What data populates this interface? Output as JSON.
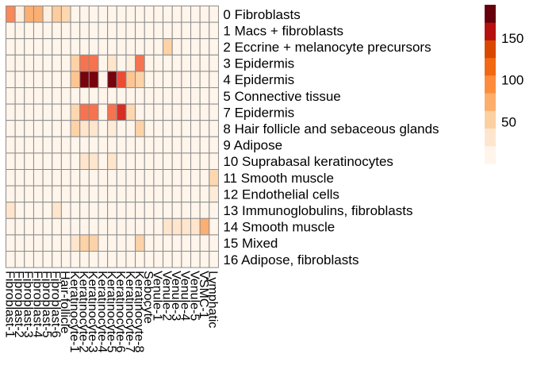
{
  "chart_data": {
    "type": "heatmap",
    "title": "",
    "xlabel": "",
    "ylabel": "",
    "rows": [
      "0 Fibroblasts",
      "1 Macs + fibroblasts",
      "2 Eccrine + melanocyte precursors",
      "3 Epidermis",
      "4 Epidermis",
      "5 Connective tissue",
      "7 Epidermis",
      "8 Hair follicle and sebaceous glands",
      "9 Adipose",
      "10 Suprabasal keratinocytes",
      "11 Smooth muscle",
      "12 Endothelial cells",
      "13 Immunoglobulins, fibroblasts",
      "14 Smooth muscle",
      "15 Mixed",
      "16 Adipose, fibroblasts"
    ],
    "columns": [
      "Fibroblast-1",
      "Fibroblast-2",
      "Fibroblast-3",
      "Fibroblast-4",
      "Fibroblast-5",
      "Fibroblast-6",
      "Hair-follicle",
      "Keratinocyte-1",
      "Keratinocyte-2",
      "Keratinocyte-3",
      "Keratinocyte-4",
      "Keratinocyte-5",
      "Keratinocyte-6",
      "Keratinocyte-7",
      "Keratinocyte-8",
      "Sebocyte",
      "Venule-1",
      "Venule-2",
      "Venule-3",
      "Venule-4",
      "Venule-5",
      "VSMC-1",
      "Lymphatic"
    ],
    "values": [
      [
        90,
        10,
        70,
        70,
        10,
        50,
        40,
        0,
        0,
        0,
        0,
        0,
        0,
        0,
        0,
        0,
        0,
        0,
        0,
        0,
        0,
        0,
        0
      ],
      [
        0,
        0,
        0,
        0,
        0,
        0,
        0,
        0,
        0,
        0,
        0,
        0,
        0,
        0,
        0,
        0,
        0,
        0,
        0,
        0,
        0,
        0,
        0
      ],
      [
        0,
        0,
        0,
        0,
        0,
        0,
        0,
        0,
        0,
        0,
        0,
        0,
        0,
        0,
        0,
        0,
        0,
        45,
        0,
        0,
        0,
        0,
        0
      ],
      [
        0,
        0,
        0,
        0,
        0,
        0,
        0,
        45,
        100,
        100,
        0,
        25,
        0,
        10,
        100,
        0,
        0,
        0,
        0,
        0,
        0,
        0,
        0
      ],
      [
        0,
        0,
        0,
        0,
        0,
        0,
        0,
        55,
        185,
        185,
        0,
        185,
        120,
        55,
        45,
        0,
        0,
        0,
        0,
        0,
        0,
        0,
        0
      ],
      [
        0,
        0,
        0,
        0,
        0,
        0,
        0,
        0,
        0,
        0,
        0,
        0,
        0,
        0,
        0,
        0,
        0,
        0,
        0,
        0,
        0,
        0,
        0
      ],
      [
        0,
        0,
        0,
        0,
        0,
        0,
        0,
        40,
        100,
        100,
        0,
        100,
        140,
        40,
        0,
        0,
        0,
        0,
        0,
        0,
        0,
        0,
        0
      ],
      [
        0,
        0,
        0,
        0,
        0,
        0,
        0,
        45,
        25,
        25,
        0,
        15,
        0,
        0,
        45,
        0,
        0,
        0,
        0,
        0,
        0,
        0,
        0
      ],
      [
        0,
        0,
        0,
        0,
        0,
        0,
        0,
        0,
        0,
        0,
        0,
        0,
        0,
        0,
        0,
        0,
        0,
        0,
        0,
        0,
        0,
        0,
        0
      ],
      [
        0,
        0,
        0,
        0,
        0,
        0,
        0,
        0,
        25,
        25,
        0,
        25,
        0,
        0,
        0,
        0,
        0,
        0,
        0,
        0,
        0,
        0,
        0
      ],
      [
        0,
        0,
        0,
        0,
        0,
        0,
        0,
        0,
        0,
        0,
        0,
        0,
        0,
        0,
        0,
        0,
        0,
        0,
        0,
        0,
        0,
        0,
        40
      ],
      [
        0,
        0,
        0,
        0,
        0,
        0,
        0,
        0,
        0,
        0,
        0,
        0,
        0,
        0,
        0,
        0,
        0,
        0,
        0,
        0,
        0,
        0,
        15
      ],
      [
        25,
        0,
        0,
        0,
        0,
        25,
        0,
        0,
        0,
        0,
        0,
        0,
        0,
        0,
        0,
        0,
        0,
        0,
        0,
        0,
        0,
        0,
        0
      ],
      [
        0,
        0,
        0,
        0,
        0,
        0,
        0,
        0,
        0,
        0,
        0,
        0,
        0,
        0,
        0,
        0,
        0,
        25,
        25,
        25,
        25,
        70,
        0
      ],
      [
        0,
        0,
        0,
        0,
        0,
        0,
        0,
        25,
        45,
        45,
        0,
        0,
        0,
        0,
        45,
        0,
        0,
        0,
        0,
        0,
        0,
        0,
        0
      ],
      [
        0,
        0,
        0,
        0,
        0,
        0,
        0,
        0,
        0,
        0,
        0,
        0,
        0,
        0,
        0,
        0,
        0,
        0,
        0,
        0,
        0,
        0,
        0
      ]
    ],
    "legend": {
      "ticks": [
        50,
        100,
        150
      ],
      "range": [
        0,
        190
      ],
      "placement": "right"
    },
    "colors": [
      "#fff5eb",
      "#fee6ce",
      "#fdd0a2",
      "#fdae6b",
      "#fd8d3c",
      "#f16913",
      "#d94801",
      "#b5120f",
      "#67000d"
    ],
    "ramp": [
      "#fff5eb",
      "#fee6ce",
      "#fdd0a2",
      "#fcad6f",
      "#f87e55",
      "#eb4e37",
      "#d32a22",
      "#b0100f",
      "#67000d"
    ],
    "grid_color": "#8c8c8c"
  }
}
